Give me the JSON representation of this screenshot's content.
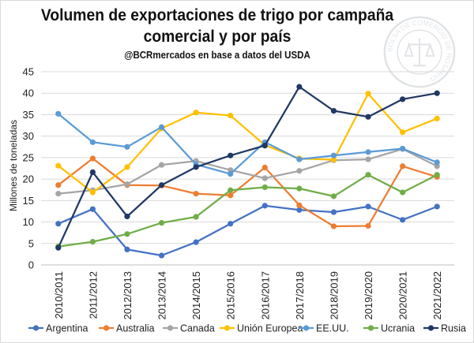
{
  "chart_data": {
    "type": "line",
    "title": "Volumen de exportaciones de trigo por campaña comercial y por país",
    "title_lines": [
      "Volumen de exportaciones de trigo por campaña",
      "comercial y por país"
    ],
    "subtitle": "@BCRmercados en base a datos del USDA",
    "ylabel": "Millones de toneladas",
    "xlabel": "",
    "ylim": [
      0,
      45
    ],
    "yticks": [
      0,
      5,
      10,
      15,
      20,
      25,
      30,
      35,
      40,
      45
    ],
    "grid": true,
    "legend_position": "bottom",
    "categories": [
      "2010/2011",
      "2011/2012",
      "2012/2013",
      "2013/2014",
      "2014/2015",
      "2015/2016",
      "2016/2017",
      "2017/2018",
      "2018/2019",
      "2019/2020",
      "2020/2021",
      "2021/2022"
    ],
    "series": [
      {
        "name": "Argentina",
        "color": "#4472c4",
        "values": [
          9.6,
          13.0,
          3.6,
          2.2,
          5.3,
          9.6,
          13.8,
          12.8,
          12.3,
          13.6,
          10.5,
          13.6
        ]
      },
      {
        "name": "Australia",
        "color": "#ed7d31",
        "values": [
          18.6,
          24.8,
          18.6,
          18.5,
          16.6,
          16.2,
          22.7,
          13.9,
          9.0,
          9.1,
          23.0,
          20.5
        ]
      },
      {
        "name": "Canada",
        "color": "#a5a5a5",
        "values": [
          16.6,
          17.4,
          18.8,
          23.3,
          24.2,
          22.1,
          20.2,
          21.9,
          24.4,
          24.6,
          27.0,
          23.0
        ]
      },
      {
        "name": "Unión Europea",
        "color": "#ffc000",
        "values": [
          23.1,
          16.9,
          22.8,
          31.8,
          35.5,
          34.8,
          27.9,
          24.8,
          24.5,
          39.9,
          30.9,
          34.1
        ]
      },
      {
        "name": "EE.UU.",
        "color": "#5b9bd5",
        "values": [
          35.2,
          28.6,
          27.5,
          32.1,
          23.4,
          21.2,
          28.6,
          24.6,
          25.5,
          26.3,
          27.1,
          23.9
        ]
      },
      {
        "name": "Ucrania",
        "color": "#70ad47",
        "values": [
          4.3,
          5.4,
          7.2,
          9.8,
          11.2,
          17.4,
          18.1,
          17.8,
          16.0,
          21.0,
          16.9,
          21.0
        ]
      },
      {
        "name": "Rusia",
        "color": "#203864",
        "values": [
          4.0,
          21.6,
          11.3,
          18.6,
          22.8,
          25.5,
          27.8,
          41.5,
          35.9,
          34.5,
          38.6,
          40.0
        ]
      }
    ]
  },
  "seal": {
    "text_top": "BOLSA DE COMERCIO DE ROSARIO",
    "color": "#5a6a7a"
  }
}
